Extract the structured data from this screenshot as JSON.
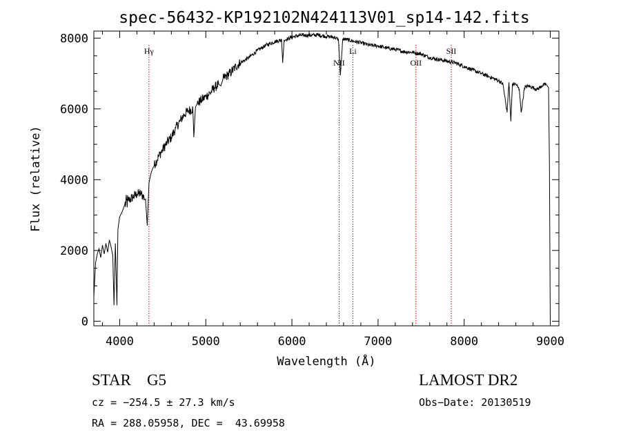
{
  "chart_data": {
    "type": "line",
    "title": "spec-56432-KP192102N424113V01_sp14-142.fits",
    "xlabel": "Wavelength (Å)",
    "ylabel": "Flux (relative)",
    "xlim": [
      3700,
      9100
    ],
    "ylim": [
      -130,
      8200
    ],
    "xticks": [
      4000,
      5000,
      6000,
      7000,
      8000,
      9000
    ],
    "xtick_labels": [
      "4000",
      "5000",
      "6000",
      "7000",
      "8000",
      "9000"
    ],
    "yticks": [
      0,
      2000,
      4000,
      6000,
      8000
    ],
    "ytick_labels": [
      "0",
      "2000",
      "4000",
      "6000",
      "8000"
    ],
    "grid": false,
    "line_color": "#000000",
    "marker_color": "#c00000",
    "series": [
      {
        "x": [
          3700,
          3720,
          3740,
          3760,
          3780,
          3800,
          3820,
          3840,
          3860,
          3880,
          3900,
          3920,
          3934,
          3950,
          3968,
          3980,
          4000,
          4030,
          4060,
          4100,
          4150,
          4200,
          4250,
          4300,
          4320,
          4340,
          4360,
          4380,
          4400,
          4450,
          4500,
          4550,
          4600,
          4650,
          4700,
          4750,
          4800,
          4850,
          4861,
          4880,
          4900,
          4950,
          5000,
          5050,
          5100,
          5150,
          5175,
          5200,
          5250,
          5300,
          5350,
          5400,
          5500,
          5600,
          5700,
          5800,
          5880,
          5893,
          5910,
          5950,
          6000,
          6100,
          6200,
          6300,
          6400,
          6500,
          6540,
          6563,
          6590,
          6650,
          6700,
          6800,
          6900,
          7000,
          7100,
          7200,
          7300,
          7400,
          7500,
          7600,
          7700,
          7800,
          7900,
          8000,
          8100,
          8200,
          8300,
          8400,
          8450,
          8498,
          8520,
          8542,
          8560,
          8600,
          8640,
          8662,
          8700,
          8750,
          8800,
          8850,
          8900,
          8950,
          8980,
          8990,
          9000
        ],
        "y": [
          700,
          1650,
          1900,
          2050,
          1800,
          2150,
          1900,
          2200,
          1950,
          2300,
          2100,
          1850,
          450,
          2200,
          450,
          2600,
          2950,
          3100,
          3300,
          3400,
          3500,
          3600,
          3600,
          3450,
          2700,
          3900,
          4150,
          4300,
          4400,
          4650,
          4850,
          5050,
          5200,
          5450,
          5650,
          5850,
          5950,
          6000,
          5200,
          6050,
          6150,
          6250,
          6350,
          6450,
          6600,
          6700,
          6650,
          6850,
          6950,
          7050,
          7200,
          7300,
          7450,
          7650,
          7800,
          7900,
          7950,
          7300,
          7950,
          7980,
          8030,
          8080,
          8080,
          8090,
          8050,
          8020,
          7950,
          6950,
          7980,
          7950,
          7920,
          7870,
          7800,
          7780,
          7720,
          7680,
          7620,
          7600,
          7550,
          7450,
          7400,
          7350,
          7300,
          7200,
          7100,
          7000,
          6900,
          6800,
          6700,
          5900,
          6750,
          5650,
          6700,
          6700,
          6550,
          5900,
          6600,
          6650,
          6600,
          6550,
          6650,
          6700,
          6600,
          4400,
          -130
        ]
      }
    ],
    "line_markers": [
      {
        "label": "Hγ",
        "x": 4340
      },
      {
        "label": "NII",
        "x": 6548
      },
      {
        "label": "Li",
        "x": 6708
      },
      {
        "label": "OII",
        "x": 7440
      },
      {
        "label": "SII",
        "x": 7850
      }
    ]
  },
  "info": {
    "class_line": "STAR    G5",
    "survey_line": "LAMOST DR2",
    "cz_line": "cz = −254.5 ± 27.3 km/s",
    "obs_line": "Obs−Date: 20130519",
    "radec_line": "RA = 288.05958, DEC =  43.69958"
  }
}
